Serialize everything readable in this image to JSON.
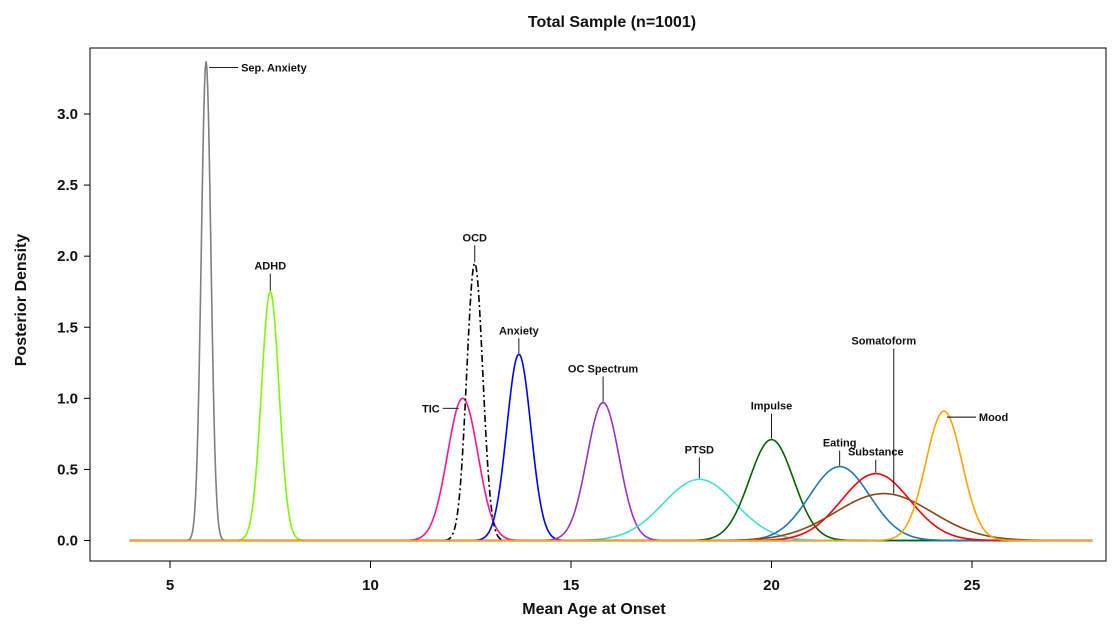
{
  "chart_data": {
    "type": "line",
    "title": "Total Sample (n=1001)",
    "xlabel": "Mean Age at Onset",
    "ylabel": "Posterior Density",
    "xlim": [
      4,
      28
    ],
    "ylim": [
      0,
      3.4
    ],
    "x_ticks": [
      "5",
      "10",
      "15",
      "20",
      "25"
    ],
    "y_ticks": [
      "0.0",
      "0.5",
      "1.0",
      "1.5",
      "2.0",
      "2.5",
      "3.0"
    ],
    "grid": false,
    "series": [
      {
        "name": "Sep. Anxiety",
        "mean": 5.9,
        "peak": 3.37,
        "sd": 0.12,
        "color": "#7f7f7f",
        "dash": "solid"
      },
      {
        "name": "ADHD",
        "mean": 7.5,
        "peak": 1.75,
        "sd": 0.22,
        "color": "#7cfc00",
        "dash": "solid"
      },
      {
        "name": "TIC",
        "mean": 12.3,
        "peak": 1.0,
        "sd": 0.38,
        "color": "#ff1493",
        "dash": "solid"
      },
      {
        "name": "OCD",
        "mean": 12.6,
        "peak": 1.95,
        "sd": 0.2,
        "color": "#000000",
        "dash": "dashdot"
      },
      {
        "name": "Anxiety",
        "mean": 13.7,
        "peak": 1.31,
        "sd": 0.3,
        "color": "#0000ff",
        "dash": "solid"
      },
      {
        "name": "OC Spectrum",
        "mean": 15.8,
        "peak": 0.97,
        "sd": 0.4,
        "color": "#9932cc",
        "dash": "solid"
      },
      {
        "name": "PTSD",
        "mean": 18.2,
        "peak": 0.43,
        "sd": 0.9,
        "color": "#40e0d0",
        "dash": "solid"
      },
      {
        "name": "Impulse",
        "mean": 20.0,
        "peak": 0.71,
        "sd": 0.55,
        "color": "#006400",
        "dash": "solid"
      },
      {
        "name": "Eating",
        "mean": 21.7,
        "peak": 0.52,
        "sd": 0.75,
        "color": "#1f77b4",
        "dash": "solid"
      },
      {
        "name": "Substance",
        "mean": 22.6,
        "peak": 0.47,
        "sd": 0.85,
        "color": "#ff0000",
        "dash": "solid"
      },
      {
        "name": "Somatoform",
        "mean": 22.8,
        "peak": 0.33,
        "sd": 1.2,
        "color": "#8b4513",
        "dash": "solid"
      },
      {
        "name": "Mood",
        "mean": 24.3,
        "peak": 0.91,
        "sd": 0.45,
        "color": "#ffa500",
        "dash": "solid"
      }
    ]
  }
}
